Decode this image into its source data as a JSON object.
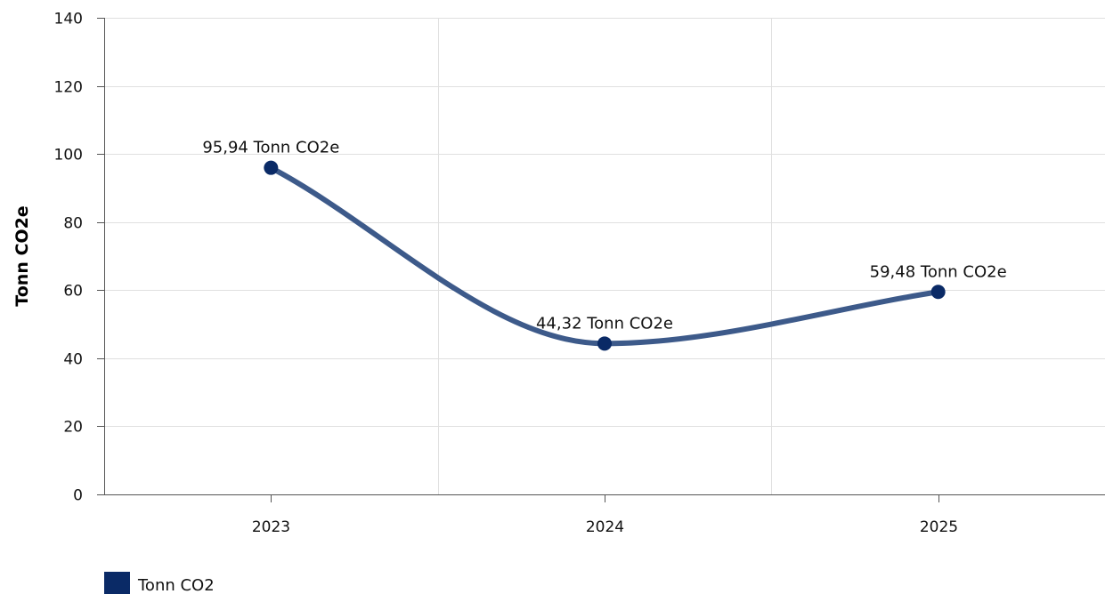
{
  "chart_data": {
    "type": "line",
    "smooth": true,
    "categories": [
      "2023",
      "2024",
      "2025"
    ],
    "series": [
      {
        "name": "Tonn CO2",
        "values": [
          95.94,
          44.32,
          59.48
        ],
        "labels": [
          "95,94 Tonn CO2e",
          "44,32 Tonn CO2e",
          "59,48 Tonn CO2e"
        ],
        "color": "#3d5a8a",
        "marker_color": "#0a2a66"
      }
    ],
    "ylabel": "Tonn CO2e",
    "xlabel": "",
    "ylim": [
      0,
      140
    ],
    "yticks": [
      0,
      20,
      40,
      60,
      80,
      100,
      120,
      140
    ],
    "grid": true,
    "legend_position": "bottom-left",
    "legend_swatch_color": "#0a2a66"
  }
}
